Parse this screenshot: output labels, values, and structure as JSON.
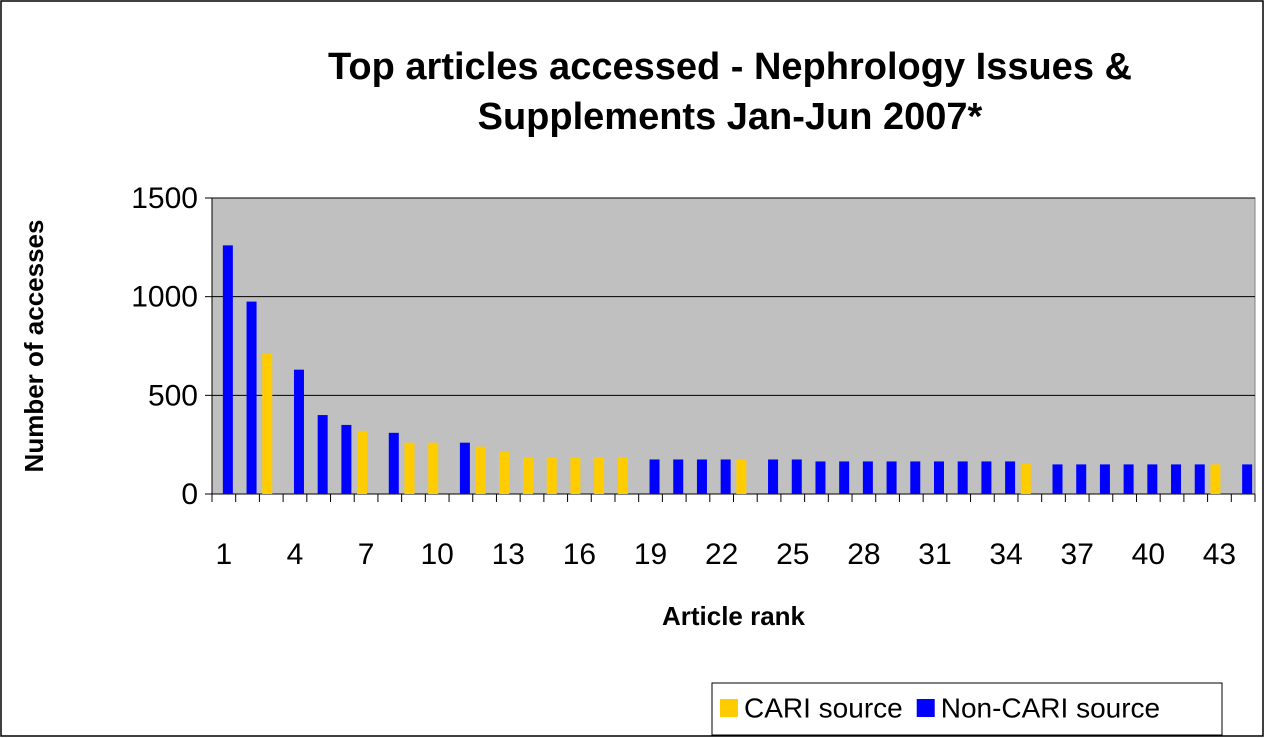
{
  "chart_data": {
    "type": "bar",
    "title": "Top articles accessed - Nephrology Issues & Supplements Jan-Jun 2007*",
    "x_label": "Article rank",
    "y_label": "Number of accesses",
    "categories": [
      "1",
      null,
      null,
      "4",
      null,
      null,
      "7",
      null,
      null,
      "10",
      null,
      null,
      "13",
      null,
      null,
      "16",
      null,
      null,
      "19",
      null,
      null,
      "22",
      null,
      null,
      "25",
      null,
      null,
      "28",
      null,
      null,
      "31",
      null,
      null,
      "34",
      null,
      null,
      "37",
      null,
      null,
      "40",
      null,
      null,
      "43",
      null
    ],
    "series": [
      {
        "name": "CARI source",
        "color": "#ffcc00",
        "values": [
          null,
          null,
          710,
          null,
          null,
          null,
          320,
          null,
          260,
          260,
          null,
          240,
          215,
          185,
          185,
          185,
          185,
          185,
          null,
          null,
          null,
          null,
          175,
          null,
          null,
          null,
          null,
          null,
          null,
          null,
          null,
          null,
          null,
          null,
          155,
          null,
          null,
          null,
          null,
          null,
          null,
          null,
          150,
          null
        ]
      },
      {
        "name": "Non-CARI source",
        "color": "#0000ff",
        "values": [
          1260,
          975,
          null,
          630,
          400,
          350,
          null,
          310,
          null,
          null,
          260,
          null,
          null,
          null,
          null,
          null,
          null,
          null,
          175,
          175,
          175,
          175,
          null,
          175,
          175,
          165,
          165,
          165,
          165,
          165,
          165,
          165,
          165,
          165,
          null,
          150,
          150,
          150,
          150,
          150,
          150,
          150,
          null,
          150
        ]
      }
    ],
    "ylim": [
      0,
      1500
    ],
    "yticks": [
      0,
      500,
      1000,
      1500
    ],
    "grid": true,
    "legend": "bottom-right"
  }
}
